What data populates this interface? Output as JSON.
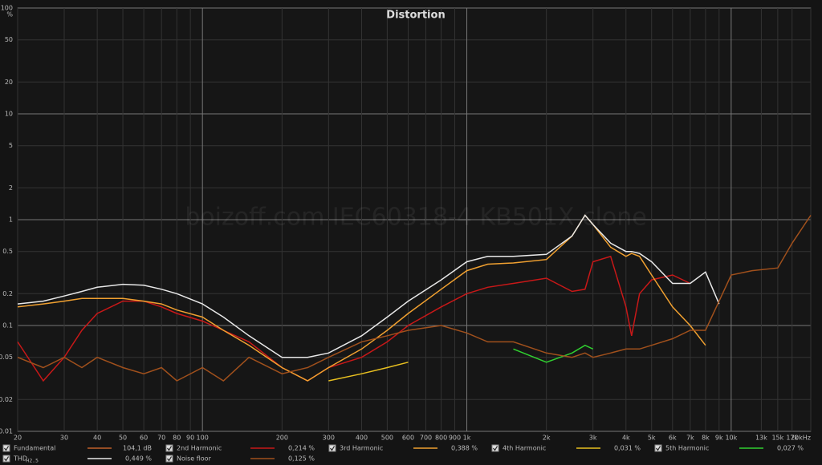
{
  "chart_data": {
    "type": "line",
    "title": "Distortion",
    "watermark": "boizoff.com IEC60318-4 KB501X clone",
    "y_label": "%",
    "log_x": true,
    "log_y": true,
    "grid": true,
    "xlim": [
      20,
      20000
    ],
    "ylim": [
      0.01,
      100
    ],
    "xticks": [
      20,
      30,
      40,
      50,
      60,
      70,
      80,
      90,
      100,
      200,
      300,
      400,
      500,
      600,
      700,
      800,
      900,
      {
        "value": 1000,
        "label": "1k"
      },
      {
        "value": 2000,
        "label": "2k"
      },
      {
        "value": 3000,
        "label": "3k"
      },
      {
        "value": 4000,
        "label": "4k"
      },
      {
        "value": 5000,
        "label": "5k"
      },
      {
        "value": 6000,
        "label": "6k"
      },
      {
        "value": 7000,
        "label": "7k"
      },
      {
        "value": 8000,
        "label": "8k"
      },
      {
        "value": 9000,
        "label": "9k"
      },
      {
        "value": 10000,
        "label": "10k"
      },
      {
        "value": 13000,
        "label": "13k"
      },
      {
        "value": 15000,
        "label": "15k"
      },
      {
        "value": 17000,
        "label": "17k"
      },
      {
        "value": 20000,
        "label": "20kHz"
      }
    ],
    "yticks": [
      100,
      50,
      20,
      10,
      5,
      2,
      1,
      0.5,
      0.2,
      0.1,
      0.05,
      0.02,
      0.01
    ],
    "legend_only": [
      {
        "name": "Fundamental",
        "color": "#c0602a",
        "readout": "104,1 dB"
      }
    ],
    "x": [
      20,
      25,
      30,
      35,
      40,
      50,
      60,
      70,
      80,
      100,
      120,
      150,
      200,
      250,
      300,
      400,
      500,
      600,
      800,
      1000,
      1200,
      1500,
      2000,
      2500,
      2800,
      3000,
      3500,
      4000,
      4200,
      4500,
      5000,
      6000,
      7000,
      8000,
      9000,
      10000,
      12000,
      15000,
      17000,
      20000
    ],
    "series": [
      {
        "name": "2nd Harmonic",
        "color": "#c81818",
        "readout": "0,214 %",
        "values": [
          0.07,
          0.03,
          0.05,
          0.09,
          0.13,
          0.17,
          0.17,
          0.15,
          0.13,
          0.11,
          0.09,
          0.07,
          0.04,
          0.03,
          0.04,
          0.05,
          0.07,
          0.1,
          0.15,
          0.2,
          0.23,
          0.25,
          0.28,
          0.21,
          0.22,
          0.4,
          0.45,
          0.15,
          0.08,
          0.2,
          0.27,
          0.3,
          0.25,
          null,
          null,
          null,
          null,
          null,
          null,
          null
        ]
      },
      {
        "name": "3rd Harmonic",
        "color": "#f0a030",
        "readout": "0,388 %",
        "values": [
          0.15,
          0.16,
          0.17,
          0.18,
          0.18,
          0.18,
          0.17,
          0.16,
          0.14,
          0.12,
          0.09,
          0.065,
          0.04,
          0.03,
          0.04,
          0.06,
          0.09,
          0.13,
          0.22,
          0.33,
          0.38,
          0.39,
          0.42,
          0.7,
          1.1,
          0.9,
          0.55,
          0.45,
          0.48,
          0.45,
          0.3,
          0.15,
          0.1,
          0.065,
          null,
          null,
          null,
          null,
          null,
          null
        ]
      },
      {
        "name": "4th Harmonic",
        "color": "#e8c020",
        "readout": "0,031 %",
        "values": [
          null,
          null,
          null,
          null,
          null,
          null,
          null,
          null,
          null,
          null,
          null,
          null,
          null,
          null,
          0.03,
          0.035,
          0.04,
          0.045,
          null,
          null,
          null,
          null,
          null,
          null,
          null,
          null,
          null,
          null,
          null,
          null,
          null,
          null,
          null,
          null,
          null,
          null,
          null,
          null,
          null,
          null
        ]
      },
      {
        "name": "5th Harmonic",
        "color": "#30d030",
        "readout": "0,027 %",
        "values": [
          null,
          null,
          null,
          null,
          null,
          null,
          null,
          null,
          null,
          null,
          null,
          null,
          null,
          null,
          null,
          null,
          null,
          null,
          null,
          null,
          null,
          0.06,
          0.045,
          0.055,
          0.065,
          0.06,
          null,
          null,
          null,
          null,
          null,
          null,
          null,
          null,
          null,
          null,
          null,
          null,
          null,
          null
        ]
      },
      {
        "name": "THD",
        "subscript": "H2..5",
        "color": "#e8e8e8",
        "readout": "0,449 %",
        "values": [
          0.16,
          0.17,
          0.19,
          0.21,
          0.23,
          0.245,
          0.24,
          0.22,
          0.2,
          0.16,
          0.12,
          0.08,
          0.05,
          0.05,
          0.055,
          0.08,
          0.12,
          0.17,
          0.27,
          0.4,
          0.45,
          0.45,
          0.47,
          0.7,
          1.1,
          0.9,
          0.6,
          0.5,
          0.5,
          0.48,
          0.4,
          0.25,
          0.25,
          0.32,
          0.16,
          null,
          null,
          null,
          null,
          null
        ]
      },
      {
        "name": "Noise floor",
        "color": "#a0501c",
        "readout": "0,125 %",
        "values": [
          0.05,
          0.04,
          0.05,
          0.04,
          0.05,
          0.04,
          0.035,
          0.04,
          0.03,
          0.04,
          0.03,
          0.05,
          0.035,
          0.04,
          0.05,
          0.07,
          0.08,
          0.09,
          0.1,
          0.085,
          0.07,
          0.07,
          0.055,
          0.05,
          0.055,
          0.05,
          0.055,
          0.06,
          0.06,
          0.06,
          0.065,
          0.075,
          0.09,
          0.09,
          0.17,
          0.3,
          0.33,
          0.35,
          0.6,
          1.1
        ]
      }
    ]
  }
}
